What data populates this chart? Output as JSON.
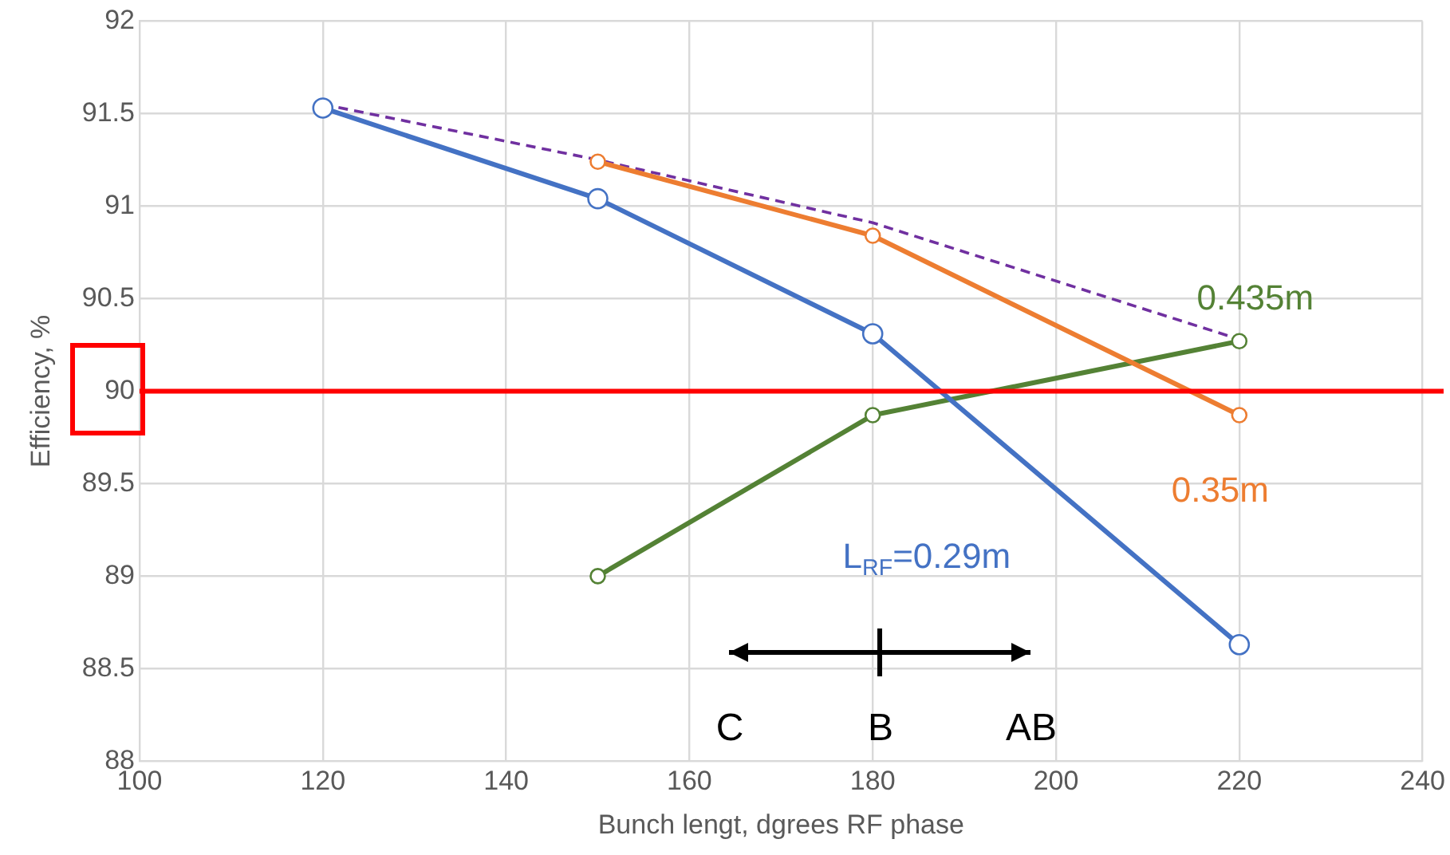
{
  "chart_data": {
    "type": "line",
    "xlabel": "Bunch lengt, dgrees RF phase",
    "ylabel": "Efficiency, %",
    "xlim": [
      100,
      240
    ],
    "xticks": [
      100,
      120,
      140,
      160,
      180,
      200,
      220,
      240
    ],
    "ylim": [
      88,
      92
    ],
    "yticks": [
      88,
      88.5,
      89,
      89.5,
      90,
      90.5,
      91,
      91.5,
      92
    ],
    "grid": true,
    "legend": false,
    "marker": "circle",
    "series": [
      {
        "name": "L$_{RF}$=0.29m",
        "color": "#4472c4",
        "x": [
          120,
          150,
          180,
          220
        ],
        "values": [
          91.53,
          91.04,
          90.31,
          88.63
        ]
      },
      {
        "name": "0.35m",
        "color": "#ed7d31",
        "x": [
          150,
          180,
          220
        ],
        "values": [
          91.24,
          90.84,
          89.87
        ]
      },
      {
        "name": "0.435m",
        "color": "#548235",
        "x": [
          150,
          180,
          220
        ],
        "values": [
          89.0,
          89.87,
          90.27
        ]
      },
      {
        "color": "#7030a0",
        "x": [
          120,
          150,
          180,
          220
        ],
        "values": [
          91.55,
          91.25,
          90.91,
          90.28
        ],
        "line_style": "dashed",
        "marker": "none"
      }
    ],
    "ref_lines": [
      {
        "axis": "y",
        "value": 90,
        "color": "#ff0000"
      }
    ],
    "annotations": [
      "C",
      "B",
      "AB"
    ]
  }
}
